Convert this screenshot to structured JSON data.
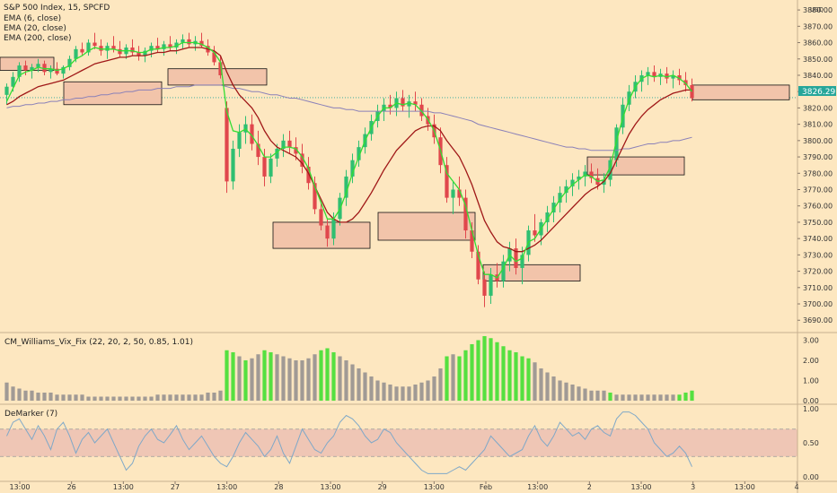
{
  "chart_data": {
    "type": "candlestick",
    "title": "S&P 500 Index, 15, SPCFD",
    "currency": "USD",
    "last_price": "3826.29",
    "legend": [
      "EMA (6, close)",
      "EMA (20, close)",
      "EMA (200, close)"
    ],
    "price_axis": {
      "ylim": [
        3683,
        3885
      ],
      "ticks": [
        "3880.00",
        "3870.00",
        "3860.00",
        "3850.00",
        "3840.00",
        "3830.00",
        "3820.00",
        "3810.00",
        "3800.00",
        "3790.00",
        "3780.00",
        "3770.00",
        "3760.00",
        "3750.00",
        "3740.00",
        "3730.00",
        "3720.00",
        "3710.00",
        "3700.00",
        "3690.00"
      ]
    },
    "time_axis": {
      "ticks": [
        "13:00",
        "26",
        "13:00",
        "27",
        "13:00",
        "28",
        "13:00",
        "29",
        "13:00",
        "Feb",
        "13:00",
        "2",
        "13:00",
        "3",
        "13:00",
        "4"
      ]
    },
    "candles": [
      [
        3828,
        3835,
        3822,
        3833
      ],
      [
        3833,
        3842,
        3830,
        3839
      ],
      [
        3839,
        3848,
        3836,
        3846
      ],
      [
        3846,
        3849,
        3840,
        3843
      ],
      [
        3843,
        3847,
        3838,
        3845
      ],
      [
        3845,
        3850,
        3842,
        3847
      ],
      [
        3847,
        3849,
        3840,
        3842
      ],
      [
        3842,
        3846,
        3838,
        3844
      ],
      [
        3844,
        3848,
        3840,
        3841
      ],
      [
        3841,
        3846,
        3838,
        3845
      ],
      [
        3845,
        3852,
        3843,
        3850
      ],
      [
        3850,
        3858,
        3848,
        3856
      ],
      [
        3856,
        3860,
        3852,
        3854
      ],
      [
        3854,
        3862,
        3852,
        3860
      ],
      [
        3860,
        3866,
        3856,
        3858
      ],
      [
        3858,
        3862,
        3852,
        3855
      ],
      [
        3855,
        3860,
        3850,
        3858
      ],
      [
        3858,
        3864,
        3854,
        3856
      ],
      [
        3856,
        3861,
        3851,
        3853
      ],
      [
        3853,
        3859,
        3850,
        3857
      ],
      [
        3857,
        3862,
        3852,
        3854
      ],
      [
        3854,
        3858,
        3849,
        3852
      ],
      [
        3852,
        3857,
        3848,
        3855
      ],
      [
        3855,
        3860,
        3851,
        3858
      ],
      [
        3858,
        3863,
        3854,
        3856
      ],
      [
        3856,
        3861,
        3852,
        3859
      ],
      [
        3859,
        3864,
        3855,
        3857
      ],
      [
        3857,
        3862,
        3853,
        3860
      ],
      [
        3860,
        3865,
        3856,
        3862
      ],
      [
        3862,
        3866,
        3857,
        3859
      ],
      [
        3859,
        3864,
        3855,
        3861
      ],
      [
        3861,
        3866,
        3857,
        3858
      ],
      [
        3858,
        3862,
        3852,
        3854
      ],
      [
        3854,
        3858,
        3846,
        3848
      ],
      [
        3848,
        3852,
        3838,
        3840
      ],
      [
        3820,
        3824,
        3768,
        3775
      ],
      [
        3775,
        3800,
        3770,
        3795
      ],
      [
        3795,
        3810,
        3790,
        3805
      ],
      [
        3805,
        3815,
        3798,
        3810
      ],
      [
        3810,
        3816,
        3794,
        3798
      ],
      [
        3798,
        3806,
        3785,
        3790
      ],
      [
        3790,
        3795,
        3772,
        3778
      ],
      [
        3778,
        3792,
        3774,
        3789
      ],
      [
        3789,
        3798,
        3784,
        3795
      ],
      [
        3795,
        3804,
        3790,
        3800
      ],
      [
        3800,
        3806,
        3792,
        3796
      ],
      [
        3796,
        3802,
        3788,
        3792
      ],
      [
        3792,
        3798,
        3780,
        3784
      ],
      [
        3784,
        3790,
        3770,
        3774
      ],
      [
        3774,
        3778,
        3755,
        3758
      ],
      [
        3758,
        3762,
        3745,
        3748
      ],
      [
        3748,
        3752,
        3735,
        3740
      ],
      [
        3740,
        3756,
        3736,
        3752
      ],
      [
        3752,
        3768,
        3748,
        3765
      ],
      [
        3765,
        3782,
        3760,
        3778
      ],
      [
        3778,
        3792,
        3774,
        3788
      ],
      [
        3788,
        3800,
        3784,
        3796
      ],
      [
        3796,
        3808,
        3792,
        3804
      ],
      [
        3804,
        3816,
        3800,
        3812
      ],
      [
        3812,
        3822,
        3808,
        3818
      ],
      [
        3818,
        3826,
        3812,
        3822
      ],
      [
        3822,
        3828,
        3816,
        3820
      ],
      [
        3820,
        3830,
        3815,
        3826
      ],
      [
        3826,
        3831,
        3818,
        3821
      ],
      [
        3821,
        3828,
        3814,
        3824
      ],
      [
        3824,
        3830,
        3818,
        3822
      ],
      [
        3822,
        3826,
        3812,
        3815
      ],
      [
        3815,
        3820,
        3806,
        3810
      ],
      [
        3810,
        3816,
        3798,
        3802
      ],
      [
        3802,
        3808,
        3780,
        3785
      ],
      [
        3785,
        3790,
        3762,
        3765
      ],
      [
        3765,
        3775,
        3755,
        3770
      ],
      [
        3770,
        3778,
        3760,
        3765
      ],
      [
        3765,
        3770,
        3740,
        3745
      ],
      [
        3745,
        3750,
        3728,
        3732
      ],
      [
        3732,
        3736,
        3712,
        3715
      ],
      [
        3715,
        3720,
        3698,
        3705
      ],
      [
        3705,
        3722,
        3700,
        3718
      ],
      [
        3718,
        3725,
        3710,
        3714
      ],
      [
        3714,
        3730,
        3710,
        3726
      ],
      [
        3726,
        3738,
        3720,
        3734
      ],
      [
        3734,
        3740,
        3718,
        3722
      ],
      [
        3722,
        3735,
        3712,
        3730
      ],
      [
        3730,
        3748,
        3726,
        3745
      ],
      [
        3745,
        3755,
        3738,
        3742
      ],
      [
        3742,
        3752,
        3736,
        3750
      ],
      [
        3750,
        3760,
        3744,
        3756
      ],
      [
        3756,
        3766,
        3750,
        3762
      ],
      [
        3762,
        3772,
        3756,
        3768
      ],
      [
        3768,
        3776,
        3762,
        3772
      ],
      [
        3772,
        3780,
        3766,
        3776
      ],
      [
        3776,
        3782,
        3770,
        3778
      ],
      [
        3778,
        3785,
        3772,
        3781
      ],
      [
        3781,
        3786,
        3774,
        3777
      ],
      [
        3777,
        3783,
        3770,
        3773
      ],
      [
        3773,
        3780,
        3768,
        3776
      ],
      [
        3776,
        3790,
        3772,
        3788
      ],
      [
        3788,
        3810,
        3784,
        3808
      ],
      [
        3808,
        3826,
        3804,
        3822
      ],
      [
        3822,
        3834,
        3818,
        3830
      ],
      [
        3830,
        3840,
        3826,
        3836
      ],
      [
        3836,
        3843,
        3830,
        3840
      ],
      [
        3840,
        3845,
        3834,
        3842
      ],
      [
        3842,
        3846,
        3836,
        3839
      ],
      [
        3839,
        3844,
        3834,
        3841
      ],
      [
        3841,
        3845,
        3835,
        3838
      ],
      [
        3838,
        3843,
        3832,
        3840
      ],
      [
        3840,
        3844,
        3834,
        3837
      ],
      [
        3837,
        3842,
        3830,
        3834
      ],
      [
        3834,
        3838,
        3824,
        3826
      ]
    ],
    "ema6": [
      3824,
      3832,
      3840,
      3842,
      3843,
      3845,
      3844,
      3844,
      3843,
      3844,
      3846,
      3850,
      3852,
      3855,
      3857,
      3856,
      3856,
      3856,
      3855,
      3855,
      3855,
      3854,
      3854,
      3856,
      3856,
      3857,
      3857,
      3858,
      3860,
      3860,
      3860,
      3859,
      3857,
      3854,
      3848,
      3818,
      3806,
      3805,
      3807,
      3803,
      3797,
      3790,
      3790,
      3793,
      3796,
      3796,
      3795,
      3790,
      3783,
      3772,
      3762,
      3752,
      3752,
      3758,
      3768,
      3780,
      3790,
      3800,
      3808,
      3815,
      3820,
      3820,
      3823,
      3822,
      3823,
      3822,
      3818,
      3813,
      3806,
      3794,
      3780,
      3775,
      3770,
      3760,
      3745,
      3730,
      3718,
      3718,
      3716,
      3722,
      3730,
      3726,
      3728,
      3738,
      3740,
      3746,
      3752,
      3758,
      3764,
      3769,
      3773,
      3776,
      3779,
      3778,
      3775,
      3776,
      3784,
      3800,
      3814,
      3825,
      3833,
      3838,
      3840,
      3839,
      3840,
      3839,
      3840,
      3838,
      3835,
      3830
    ],
    "ema20": [
      3822,
      3824,
      3827,
      3829,
      3831,
      3833,
      3834,
      3835,
      3836,
      3837,
      3839,
      3841,
      3843,
      3845,
      3847,
      3848,
      3849,
      3850,
      3851,
      3851,
      3852,
      3852,
      3852,
      3853,
      3854,
      3854,
      3855,
      3855,
      3856,
      3857,
      3857,
      3857,
      3856,
      3855,
      3852,
      3842,
      3834,
      3828,
      3824,
      3820,
      3814,
      3806,
      3800,
      3796,
      3794,
      3792,
      3790,
      3786,
      3780,
      3772,
      3764,
      3756,
      3752,
      3750,
      3750,
      3752,
      3756,
      3762,
      3768,
      3775,
      3782,
      3788,
      3794,
      3798,
      3802,
      3806,
      3808,
      3809,
      3809,
      3806,
      3800,
      3795,
      3790,
      3782,
      3773,
      3762,
      3751,
      3744,
      3738,
      3735,
      3734,
      3732,
      3732,
      3734,
      3736,
      3739,
      3743,
      3747,
      3751,
      3755,
      3759,
      3763,
      3767,
      3770,
      3772,
      3775,
      3780,
      3788,
      3796,
      3804,
      3810,
      3815,
      3819,
      3822,
      3825,
      3827,
      3829,
      3830,
      3831,
      3831
    ],
    "ema200": [
      3820,
      3821,
      3821,
      3822,
      3822,
      3823,
      3823,
      3824,
      3824,
      3825,
      3825,
      3826,
      3826,
      3827,
      3827,
      3828,
      3828,
      3829,
      3829,
      3830,
      3830,
      3831,
      3831,
      3831,
      3832,
      3832,
      3832,
      3833,
      3833,
      3833,
      3834,
      3834,
      3834,
      3834,
      3834,
      3833,
      3832,
      3832,
      3831,
      3830,
      3830,
      3829,
      3828,
      3828,
      3827,
      3826,
      3826,
      3825,
      3824,
      3823,
      3822,
      3821,
      3820,
      3820,
      3819,
      3819,
      3818,
      3818,
      3818,
      3818,
      3818,
      3818,
      3818,
      3818,
      3818,
      3818,
      3818,
      3818,
      3817,
      3817,
      3816,
      3815,
      3814,
      3813,
      3812,
      3810,
      3809,
      3808,
      3807,
      3806,
      3805,
      3804,
      3803,
      3802,
      3801,
      3800,
      3799,
      3798,
      3797,
      3796,
      3796,
      3795,
      3795,
      3794,
      3794,
      3794,
      3794,
      3794,
      3795,
      3795,
      3796,
      3797,
      3798,
      3798,
      3799,
      3799,
      3800,
      3800,
      3801,
      3802
    ],
    "zones": [
      {
        "p1": 3851,
        "p2": 3843
      },
      {
        "p1": 3836,
        "p2": 3822
      },
      {
        "p1": 3844,
        "p2": 3834
      },
      {
        "p1": 3750,
        "p2": 3734
      },
      {
        "p1": 3756,
        "p2": 3739
      },
      {
        "p1": 3724,
        "p2": 3714
      },
      {
        "p1": 3790,
        "p2": 3779
      },
      {
        "p1": 3834,
        "p2": 3825
      }
    ],
    "vix": {
      "title": "CM_Williams_Vix_Fix (22, 20, 2, 50, 0.85, 1.01)",
      "ticks": [
        "3.00",
        "2.00",
        "1.00",
        "0.00"
      ],
      "ylim": [
        0,
        3.2
      ],
      "values": [
        0.9,
        0.7,
        0.6,
        0.5,
        0.5,
        0.4,
        0.4,
        0.4,
        0.3,
        0.3,
        0.3,
        0.3,
        0.3,
        0.2,
        0.2,
        0.2,
        0.2,
        0.2,
        0.2,
        0.2,
        0.2,
        0.2,
        0.2,
        0.2,
        0.3,
        0.3,
        0.3,
        0.3,
        0.3,
        0.3,
        0.3,
        0.3,
        0.4,
        0.4,
        0.5,
        2.5,
        2.4,
        2.2,
        2.0,
        2.1,
        2.3,
        2.5,
        2.4,
        2.3,
        2.2,
        2.1,
        2.0,
        2.0,
        2.1,
        2.3,
        2.5,
        2.6,
        2.4,
        2.2,
        2.0,
        1.8,
        1.6,
        1.4,
        1.2,
        1.0,
        0.9,
        0.8,
        0.7,
        0.7,
        0.7,
        0.8,
        0.9,
        1.0,
        1.2,
        1.6,
        2.2,
        2.3,
        2.2,
        2.5,
        2.8,
        3.0,
        3.2,
        3.1,
        2.9,
        2.7,
        2.5,
        2.4,
        2.2,
        2.1,
        1.9,
        1.6,
        1.4,
        1.2,
        1.0,
        0.9,
        0.8,
        0.7,
        0.6,
        0.5,
        0.5,
        0.5,
        0.4,
        0.3,
        0.3,
        0.3,
        0.3,
        0.3,
        0.3,
        0.3,
        0.3,
        0.3,
        0.3,
        0.3,
        0.4,
        0.5
      ],
      "highlight": [
        35,
        36,
        38,
        41,
        42,
        50,
        51,
        52,
        70,
        72,
        73,
        74,
        75,
        76,
        77,
        78,
        79,
        80,
        81,
        82,
        83,
        96,
        107,
        108,
        109
      ]
    },
    "demarker": {
      "title": "DeMarker (7)",
      "ticks": [
        "1.00",
        "0.50",
        "0.00"
      ],
      "ylim": [
        -0.05,
        1.05
      ],
      "upper": 0.7,
      "lower": 0.3,
      "values": [
        0.6,
        0.8,
        0.85,
        0.7,
        0.55,
        0.75,
        0.6,
        0.4,
        0.7,
        0.8,
        0.6,
        0.35,
        0.55,
        0.65,
        0.5,
        0.6,
        0.7,
        0.5,
        0.3,
        0.1,
        0.2,
        0.45,
        0.6,
        0.7,
        0.55,
        0.5,
        0.62,
        0.75,
        0.55,
        0.4,
        0.5,
        0.6,
        0.45,
        0.3,
        0.2,
        0.15,
        0.3,
        0.5,
        0.65,
        0.55,
        0.45,
        0.3,
        0.4,
        0.6,
        0.35,
        0.2,
        0.45,
        0.7,
        0.55,
        0.4,
        0.35,
        0.5,
        0.6,
        0.8,
        0.9,
        0.85,
        0.75,
        0.6,
        0.5,
        0.55,
        0.7,
        0.65,
        0.5,
        0.4,
        0.3,
        0.2,
        0.1,
        0.05,
        0.05,
        0.05,
        0.05,
        0.1,
        0.15,
        0.1,
        0.2,
        0.3,
        0.4,
        0.6,
        0.5,
        0.4,
        0.3,
        0.35,
        0.4,
        0.6,
        0.75,
        0.55,
        0.45,
        0.6,
        0.8,
        0.7,
        0.6,
        0.65,
        0.55,
        0.7,
        0.75,
        0.65,
        0.6,
        0.85,
        0.95,
        0.95,
        0.9,
        0.8,
        0.7,
        0.5,
        0.4,
        0.3,
        0.35,
        0.45,
        0.35,
        0.15
      ]
    },
    "colors": {
      "background": "#fde7c0",
      "up": "#2fbf71",
      "down": "#e0474c",
      "ema6": "#33dd33",
      "ema20": "#a01818",
      "ema200": "#8a80b8",
      "zone_fill": "#f2c4aa",
      "vix_normal": "#a09a95",
      "vix_high": "#55e040",
      "demarker_line": "#7fa8c8",
      "demarker_band": "#e8b8b0",
      "last_price_bg": "#26a69a"
    }
  }
}
